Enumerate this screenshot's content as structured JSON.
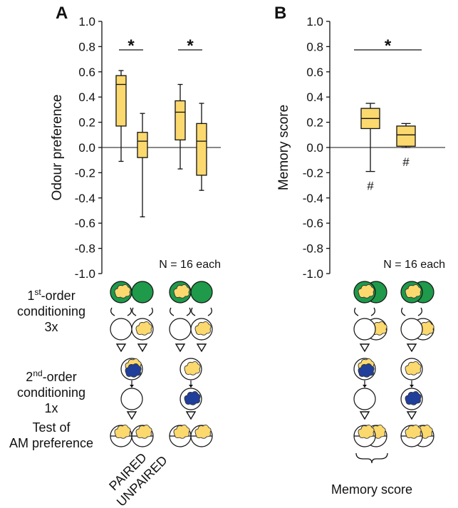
{
  "chart_data": [
    {
      "type": "box",
      "panel": "A",
      "ylabel": "Odour preference",
      "ylim": [
        -1,
        1
      ],
      "yticks": [
        {
          "value": -1,
          "label": "-1.0"
        },
        {
          "value": -0.8,
          "label": "-0.8"
        },
        {
          "value": -0.6,
          "label": "-0.6"
        },
        {
          "value": -0.4,
          "label": "-0.4"
        },
        {
          "value": -0.2,
          "label": "-0.2"
        },
        {
          "value": 0,
          "label": "0.0"
        },
        {
          "value": 0.2,
          "label": "0.2"
        },
        {
          "value": 0.4,
          "label": "0.4"
        },
        {
          "value": 0.6,
          "label": "0.6"
        },
        {
          "value": 0.8,
          "label": "0.8"
        },
        {
          "value": 1,
          "label": "1.0"
        }
      ],
      "color": "#fcd96e",
      "boxes": [
        {
          "whisker_low": -0.11,
          "q1": 0.17,
          "median": 0.5,
          "q3": 0.57,
          "whisker_high": 0.61
        },
        {
          "whisker_low": -0.55,
          "q1": -0.08,
          "median": 0.05,
          "q3": 0.12,
          "whisker_high": 0.27
        },
        {
          "whisker_low": -0.17,
          "q1": 0.06,
          "median": 0.28,
          "q3": 0.37,
          "whisker_high": 0.5
        },
        {
          "whisker_low": -0.34,
          "q1": -0.22,
          "median": 0.05,
          "q3": 0.19,
          "whisker_high": 0.35
        }
      ],
      "significance": [
        "*",
        "*"
      ],
      "note": "N = 16 each"
    },
    {
      "type": "box",
      "panel": "B",
      "ylabel": "Memory score",
      "ylim": [
        -1,
        1
      ],
      "yticks": [
        {
          "value": -1,
          "label": "-1.0"
        },
        {
          "value": -0.8,
          "label": "-0.8"
        },
        {
          "value": -0.6,
          "label": "-0.6"
        },
        {
          "value": -0.4,
          "label": "-0.4"
        },
        {
          "value": -0.2,
          "label": "-0.2"
        },
        {
          "value": 0,
          "label": "0.0"
        },
        {
          "value": 0.2,
          "label": "0.2"
        },
        {
          "value": 0.4,
          "label": "0.4"
        },
        {
          "value": 0.6,
          "label": "0.6"
        },
        {
          "value": 0.8,
          "label": "0.8"
        },
        {
          "value": 1,
          "label": "1.0"
        }
      ],
      "color": "#fcd96e",
      "boxes": [
        {
          "whisker_low": -0.19,
          "q1": 0.15,
          "median": 0.23,
          "q3": 0.31,
          "whisker_high": 0.35
        },
        {
          "whisker_low": 0.0,
          "q1": 0.01,
          "median": 0.1,
          "q3": 0.17,
          "whisker_high": 0.19
        }
      ],
      "significance": [
        "*"
      ],
      "box_notes": [
        "#",
        "#"
      ],
      "note": "N = 16 each"
    }
  ],
  "diagram": {
    "rows": [
      {
        "number": "1",
        "sup": "st",
        "rest": "-order",
        "line2": "conditioning",
        "line3": "3x"
      },
      {
        "number": "2",
        "sup": "nd",
        "rest": "-order",
        "line2": "conditioning",
        "line3": "1x"
      },
      {
        "line1": "Test of",
        "line2": "AM preference"
      }
    ],
    "group_labels": [
      "PAIRED",
      "UNPAIRED"
    ],
    "brace_label": "Memory score"
  }
}
